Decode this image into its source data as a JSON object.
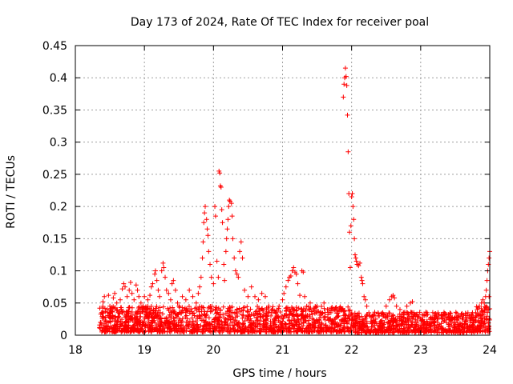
{
  "chart_data": {
    "type": "scatter",
    "title": "Day 173 of 2024, Rate Of TEC Index for receiver poal",
    "xlabel": "GPS time / hours",
    "ylabel": "ROTI / TECUs",
    "xlim": [
      18,
      24
    ],
    "ylim": [
      0,
      0.45
    ],
    "x_ticks": [
      18,
      19,
      20,
      21,
      22,
      23,
      24
    ],
    "x_tick_labels": [
      "18",
      "19",
      "20",
      "21",
      "22",
      "23",
      "24"
    ],
    "y_ticks": [
      0,
      0.05,
      0.1,
      0.15,
      0.2,
      0.25,
      0.3,
      0.35,
      0.4,
      0.45
    ],
    "y_tick_labels": [
      "0",
      "0.05",
      "0.1",
      "0.15",
      "0.2",
      "0.25",
      "0.3",
      "0.35",
      "0.4",
      "0.45"
    ],
    "grid": true,
    "marker": "+",
    "marker_color": "#ff0000",
    "series": [
      {
        "name": "ROTI",
        "points": [
          [
            18.35,
            0.012
          ],
          [
            18.37,
            0.02
          ],
          [
            18.38,
            0.035
          ],
          [
            18.4,
            0.052
          ],
          [
            18.42,
            0.06
          ],
          [
            18.44,
            0.028
          ],
          [
            18.46,
            0.04
          ],
          [
            18.48,
            0.062
          ],
          [
            18.5,
            0.045
          ],
          [
            18.52,
            0.03
          ],
          [
            18.55,
            0.058
          ],
          [
            18.57,
            0.065
          ],
          [
            18.6,
            0.05
          ],
          [
            18.62,
            0.035
          ],
          [
            18.65,
            0.055
          ],
          [
            18.68,
            0.072
          ],
          [
            18.7,
            0.08
          ],
          [
            18.72,
            0.075
          ],
          [
            18.75,
            0.06
          ],
          [
            18.78,
            0.07
          ],
          [
            18.8,
            0.082
          ],
          [
            18.82,
            0.065
          ],
          [
            18.85,
            0.055
          ],
          [
            18.88,
            0.078
          ],
          [
            18.9,
            0.07
          ],
          [
            18.92,
            0.06
          ],
          [
            18.95,
            0.05
          ],
          [
            18.98,
            0.045
          ],
          [
            19.0,
            0.06
          ],
          [
            19.02,
            0.04
          ],
          [
            19.05,
            0.055
          ],
          [
            19.08,
            0.062
          ],
          [
            19.1,
            0.075
          ],
          [
            19.12,
            0.08
          ],
          [
            19.15,
            0.095
          ],
          [
            19.16,
            0.1
          ],
          [
            19.18,
            0.085
          ],
          [
            19.2,
            0.07
          ],
          [
            19.22,
            0.06
          ],
          [
            19.25,
            0.1
          ],
          [
            19.27,
            0.112
          ],
          [
            19.28,
            0.105
          ],
          [
            19.3,
            0.09
          ],
          [
            19.32,
            0.07
          ],
          [
            19.35,
            0.065
          ],
          [
            19.38,
            0.055
          ],
          [
            19.4,
            0.08
          ],
          [
            19.42,
            0.085
          ],
          [
            19.45,
            0.07
          ],
          [
            19.48,
            0.05
          ],
          [
            19.5,
            0.045
          ],
          [
            19.55,
            0.06
          ],
          [
            19.6,
            0.055
          ],
          [
            19.65,
            0.07
          ],
          [
            19.7,
            0.06
          ],
          [
            19.75,
            0.05
          ],
          [
            19.78,
            0.065
          ],
          [
            19.8,
            0.075
          ],
          [
            19.82,
            0.09
          ],
          [
            19.84,
            0.12
          ],
          [
            19.85,
            0.145
          ],
          [
            19.86,
            0.175
          ],
          [
            19.87,
            0.19
          ],
          [
            19.88,
            0.2
          ],
          [
            19.9,
            0.18
          ],
          [
            19.91,
            0.165
          ],
          [
            19.92,
            0.155
          ],
          [
            19.93,
            0.13
          ],
          [
            19.95,
            0.11
          ],
          [
            19.97,
            0.09
          ],
          [
            20.0,
            0.08
          ],
          [
            20.02,
            0.2
          ],
          [
            20.03,
            0.185
          ],
          [
            20.05,
            0.115
          ],
          [
            20.07,
            0.09
          ],
          [
            20.08,
            0.255
          ],
          [
            20.09,
            0.252
          ],
          [
            20.1,
            0.232
          ],
          [
            20.11,
            0.23
          ],
          [
            20.12,
            0.195
          ],
          [
            20.13,
            0.175
          ],
          [
            20.15,
            0.11
          ],
          [
            20.16,
            0.085
          ],
          [
            20.18,
            0.13
          ],
          [
            20.19,
            0.15
          ],
          [
            20.2,
            0.165
          ],
          [
            20.21,
            0.18
          ],
          [
            20.22,
            0.2
          ],
          [
            20.23,
            0.21
          ],
          [
            20.24,
            0.208
          ],
          [
            20.26,
            0.205
          ],
          [
            20.27,
            0.185
          ],
          [
            20.28,
            0.15
          ],
          [
            20.3,
            0.12
          ],
          [
            20.32,
            0.1
          ],
          [
            20.34,
            0.095
          ],
          [
            20.36,
            0.09
          ],
          [
            20.38,
            0.13
          ],
          [
            20.4,
            0.145
          ],
          [
            20.42,
            0.12
          ],
          [
            20.45,
            0.07
          ],
          [
            20.5,
            0.06
          ],
          [
            20.55,
            0.075
          ],
          [
            20.6,
            0.06
          ],
          [
            20.65,
            0.055
          ],
          [
            20.7,
            0.065
          ],
          [
            20.75,
            0.06
          ],
          [
            20.8,
            0.045
          ],
          [
            20.85,
            0.04
          ],
          [
            20.9,
            0.035
          ],
          [
            20.95,
            0.045
          ],
          [
            21.0,
            0.055
          ],
          [
            21.02,
            0.065
          ],
          [
            21.05,
            0.075
          ],
          [
            21.08,
            0.085
          ],
          [
            21.1,
            0.09
          ],
          [
            21.12,
            0.092
          ],
          [
            21.14,
            0.1
          ],
          [
            21.16,
            0.105
          ],
          [
            21.18,
            0.098
          ],
          [
            21.2,
            0.095
          ],
          [
            21.22,
            0.08
          ],
          [
            21.25,
            0.062
          ],
          [
            21.28,
            0.1
          ],
          [
            21.3,
            0.098
          ],
          [
            21.32,
            0.06
          ],
          [
            21.35,
            0.045
          ],
          [
            21.4,
            0.05
          ],
          [
            21.45,
            0.04
          ],
          [
            21.5,
            0.045
          ],
          [
            21.55,
            0.035
          ],
          [
            21.6,
            0.05
          ],
          [
            21.65,
            0.04
          ],
          [
            21.7,
            0.035
          ],
          [
            21.75,
            0.04
          ],
          [
            21.8,
            0.03
          ],
          [
            21.85,
            0.04
          ],
          [
            21.88,
            0.37
          ],
          [
            21.89,
            0.39
          ],
          [
            21.9,
            0.4
          ],
          [
            21.91,
            0.415
          ],
          [
            21.92,
            0.402
          ],
          [
            21.93,
            0.388
          ],
          [
            21.94,
            0.342
          ],
          [
            21.95,
            0.285
          ],
          [
            21.96,
            0.22
          ],
          [
            21.97,
            0.16
          ],
          [
            21.98,
            0.105
          ],
          [
            21.99,
            0.17
          ],
          [
            22.0,
            0.215
          ],
          [
            22.01,
            0.22
          ],
          [
            22.02,
            0.2
          ],
          [
            22.03,
            0.18
          ],
          [
            22.04,
            0.15
          ],
          [
            22.05,
            0.125
          ],
          [
            22.06,
            0.12
          ],
          [
            22.07,
            0.115
          ],
          [
            22.08,
            0.11
          ],
          [
            22.1,
            0.108
          ],
          [
            22.12,
            0.112
          ],
          [
            22.14,
            0.09
          ],
          [
            22.15,
            0.085
          ],
          [
            22.16,
            0.08
          ],
          [
            22.18,
            0.06
          ],
          [
            22.2,
            0.055
          ],
          [
            22.22,
            0.045
          ],
          [
            22.25,
            0.035
          ],
          [
            22.3,
            0.03
          ],
          [
            22.35,
            0.025
          ],
          [
            22.4,
            0.03
          ],
          [
            22.45,
            0.035
          ],
          [
            22.5,
            0.045
          ],
          [
            22.55,
            0.055
          ],
          [
            22.58,
            0.06
          ],
          [
            22.6,
            0.062
          ],
          [
            22.62,
            0.058
          ],
          [
            22.65,
            0.045
          ],
          [
            22.7,
            0.04
          ],
          [
            22.75,
            0.035
          ],
          [
            22.8,
            0.045
          ],
          [
            22.85,
            0.05
          ],
          [
            22.88,
            0.052
          ],
          [
            22.9,
            0.035
          ],
          [
            22.95,
            0.03
          ],
          [
            23.0,
            0.025
          ],
          [
            23.05,
            0.03
          ],
          [
            23.1,
            0.032
          ],
          [
            23.15,
            0.028
          ],
          [
            23.2,
            0.03
          ],
          [
            23.25,
            0.025
          ],
          [
            23.3,
            0.03
          ],
          [
            23.35,
            0.032
          ],
          [
            23.4,
            0.028
          ],
          [
            23.45,
            0.025
          ],
          [
            23.5,
            0.028
          ],
          [
            23.55,
            0.03
          ],
          [
            23.6,
            0.025
          ],
          [
            23.65,
            0.022
          ],
          [
            23.7,
            0.03
          ],
          [
            23.75,
            0.035
          ],
          [
            23.8,
            0.03
          ],
          [
            23.82,
            0.04
          ],
          [
            23.85,
            0.045
          ],
          [
            23.88,
            0.05
          ],
          [
            23.9,
            0.055
          ],
          [
            23.92,
            0.05
          ],
          [
            23.94,
            0.06
          ],
          [
            23.95,
            0.07
          ],
          [
            23.96,
            0.085
          ],
          [
            23.97,
            0.1
          ],
          [
            23.98,
            0.11
          ],
          [
            23.99,
            0.12
          ],
          [
            24.0,
            0.13
          ],
          [
            23.99,
            0.06
          ],
          [
            23.98,
            0.04
          ]
        ]
      }
    ],
    "dense_band_y_range": [
      0.005,
      0.045
    ]
  }
}
